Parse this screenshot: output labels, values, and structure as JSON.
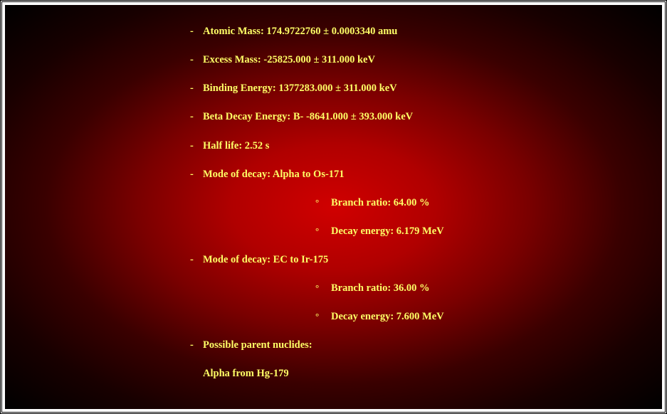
{
  "background": {
    "gradient_center": "#d00000",
    "gradient_edge": "#000000"
  },
  "text_color": "#ffff66",
  "font_family": "Georgia, Times New Roman, serif",
  "font_size_pt": 11,
  "font_weight": "bold",
  "bullets": {
    "level1": "-",
    "level2": "°"
  },
  "items": [
    {
      "label": "Atomic Mass: 174.9722760 ± 0.0003340 amu"
    },
    {
      "label": "Excess Mass: -25825.000 ± 311.000 keV"
    },
    {
      "label": "Binding Energy: 1377283.000 ± 311.000 keV"
    },
    {
      "label": "Beta Decay Energy: B- -8641.000 ± 393.000 keV"
    },
    {
      "label": "Half life: 2.52 s"
    },
    {
      "label": "Mode of decay: Alpha to Os-171",
      "sub": [
        "Branch ratio: 64.00 %",
        "Decay energy: 6.179 MeV"
      ]
    },
    {
      "label": "Mode of decay: EC to Ir-175",
      "sub": [
        "Branch ratio: 36.00 %",
        "Decay energy: 7.600 MeV"
      ]
    },
    {
      "label": "Possible parent nuclides:",
      "detail": "Alpha from Hg-179"
    }
  ]
}
